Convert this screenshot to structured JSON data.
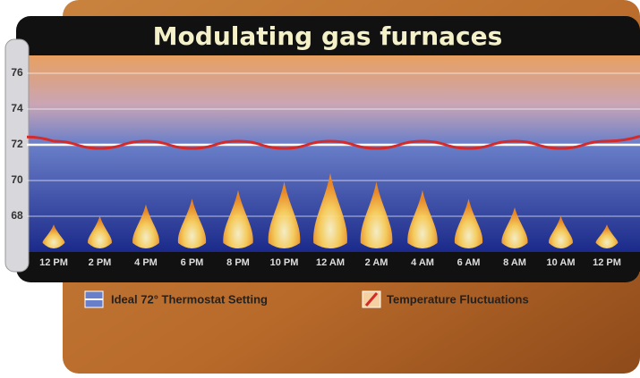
{
  "chart_data": {
    "type": "line",
    "title": "Modulating gas furnaces",
    "categories": [
      "12 PM",
      "2 PM",
      "4 PM",
      "6 PM",
      "8 PM",
      "10 PM",
      "12 AM",
      "2 AM",
      "4 AM",
      "6 AM",
      "8 AM",
      "10 AM",
      "12 PM"
    ],
    "series": [
      {
        "name": "Ideal 72° Thermostat Setting",
        "color": "#ffffff",
        "values": [
          72,
          72,
          72,
          72,
          72,
          72,
          72,
          72,
          72,
          72,
          72,
          72,
          72
        ]
      },
      {
        "name": "Temperature Fluctuations",
        "color": "#d42a2a",
        "values": [
          72.2,
          71.8,
          72.2,
          71.8,
          72.2,
          71.8,
          72.2,
          71.8,
          72.2,
          71.8,
          72.2,
          71.8,
          72.2
        ]
      }
    ],
    "ylim": [
      66,
      77
    ],
    "yticks": [
      68,
      70,
      72,
      74,
      76
    ],
    "grid": true
  }
}
